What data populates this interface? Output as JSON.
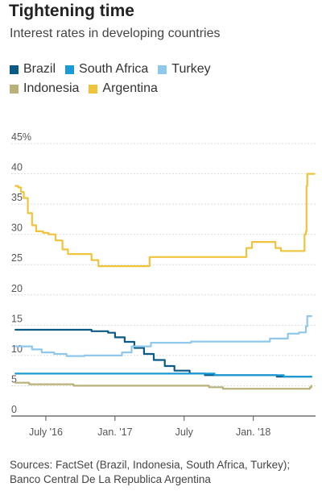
{
  "title": "Tightening time",
  "subtitle": "Interest rates in developing countries",
  "source": "Sources: FactSet (Brazil, Indonesia, South Africa, Turkey); Banco Central De La Republica Argentina",
  "chart_data": {
    "type": "line",
    "title": "Tightening time",
    "subtitle": "Interest rates in developing countries",
    "xlabel": "",
    "ylabel": "",
    "x_ticks": [
      {
        "label": "July '16",
        "t": 0.5
      },
      {
        "label": "Jan. '17",
        "t": 1.0
      },
      {
        "label": "July",
        "t": 1.5
      },
      {
        "label": "Jan. '18",
        "t": 2.0
      }
    ],
    "x_range": [
      0.25,
      2.45
    ],
    "y_ticks": [
      "0",
      "5",
      "10",
      "15",
      "20",
      "25",
      "30",
      "35",
      "40",
      "45%"
    ],
    "ylim": [
      0,
      45
    ],
    "grid": true,
    "legend_position": "top",
    "series": [
      {
        "name": "Brazil",
        "color": "#0b5a86",
        "points": [
          [
            0.28,
            14.25
          ],
          [
            0.79,
            14.25
          ],
          [
            0.83,
            14.0
          ],
          [
            0.95,
            13.75
          ],
          [
            1.0,
            13.0
          ],
          [
            1.07,
            12.25
          ],
          [
            1.14,
            11.25
          ],
          [
            1.21,
            10.25
          ],
          [
            1.28,
            9.25
          ],
          [
            1.36,
            8.25
          ],
          [
            1.43,
            7.5
          ],
          [
            1.54,
            7.0
          ],
          [
            1.65,
            6.75
          ],
          [
            2.08,
            6.75
          ],
          [
            2.17,
            6.5
          ],
          [
            2.42,
            6.5
          ]
        ]
      },
      {
        "name": "South Africa",
        "color": "#1a9ad6",
        "points": [
          [
            0.28,
            7.0
          ],
          [
            1.68,
            7.0
          ],
          [
            1.72,
            6.75
          ],
          [
            2.17,
            6.75
          ],
          [
            2.22,
            6.5
          ],
          [
            2.42,
            6.5
          ]
        ]
      },
      {
        "name": "Turkey",
        "color": "#8ec8ea",
        "points": [
          [
            0.28,
            11.5
          ],
          [
            0.35,
            11.5
          ],
          [
            0.4,
            11.0
          ],
          [
            0.47,
            10.5
          ],
          [
            0.56,
            10.25
          ],
          [
            0.65,
            9.9
          ],
          [
            0.78,
            10.0
          ],
          [
            0.95,
            10.0
          ],
          [
            1.05,
            10.5
          ],
          [
            1.12,
            11.5
          ],
          [
            1.26,
            12.1
          ],
          [
            1.55,
            12.3
          ],
          [
            2.12,
            12.8
          ],
          [
            2.25,
            13.6
          ],
          [
            2.33,
            13.8
          ],
          [
            2.38,
            14.8
          ],
          [
            2.39,
            16.5
          ],
          [
            2.42,
            16.5
          ]
        ]
      },
      {
        "name": "Indonesia",
        "color": "#b9b07a",
        "points": [
          [
            0.28,
            5.5
          ],
          [
            0.38,
            5.25
          ],
          [
            0.62,
            5.25
          ],
          [
            0.7,
            5.0
          ],
          [
            1.28,
            5.0
          ],
          [
            1.68,
            4.75
          ],
          [
            1.78,
            4.5
          ],
          [
            2.38,
            4.5
          ],
          [
            2.41,
            4.75
          ],
          [
            2.42,
            5.0
          ]
        ]
      },
      {
        "name": "Argentina",
        "color": "#f0c33c",
        "points": [
          [
            0.28,
            38.0
          ],
          [
            0.3,
            37.75
          ],
          [
            0.32,
            37.0
          ],
          [
            0.34,
            36.0
          ],
          [
            0.37,
            33.5
          ],
          [
            0.4,
            31.5
          ],
          [
            0.43,
            30.5
          ],
          [
            0.48,
            30.25
          ],
          [
            0.52,
            30.0
          ],
          [
            0.57,
            29.0
          ],
          [
            0.62,
            27.5
          ],
          [
            0.66,
            26.75
          ],
          [
            0.8,
            26.75
          ],
          [
            0.83,
            25.75
          ],
          [
            0.88,
            24.75
          ],
          [
            1.22,
            24.75
          ],
          [
            1.25,
            26.25
          ],
          [
            1.93,
            26.25
          ],
          [
            1.95,
            27.75
          ],
          [
            1.99,
            28.75
          ],
          [
            2.12,
            28.75
          ],
          [
            2.16,
            27.75
          ],
          [
            2.2,
            27.25
          ],
          [
            2.36,
            27.25
          ],
          [
            2.37,
            30.0
          ],
          [
            2.38,
            30.5
          ],
          [
            2.385,
            38.0
          ],
          [
            2.39,
            40.0
          ],
          [
            2.44,
            40.0
          ]
        ]
      }
    ]
  }
}
